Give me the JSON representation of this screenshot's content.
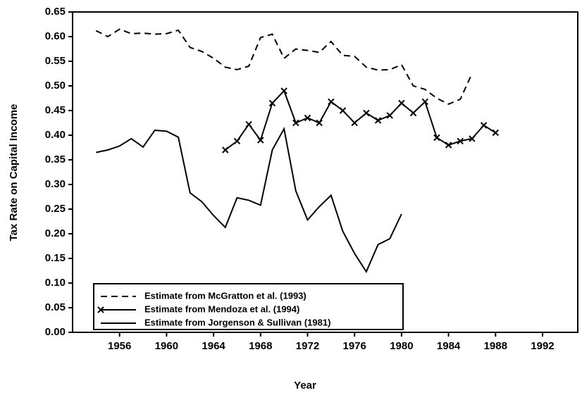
{
  "chart_data": {
    "type": "line",
    "xlabel": "Year",
    "ylabel": "Tax Rate on Capital Income",
    "xlim": [
      1952,
      1995
    ],
    "xticks": [
      1956,
      1960,
      1964,
      1968,
      1972,
      1976,
      1980,
      1984,
      1988,
      1992
    ],
    "ylim": [
      0,
      0.65
    ],
    "yticks": [
      {
        "value": 0,
        "label": "0.00"
      },
      {
        "value": 0.05,
        "label": "0.05"
      },
      {
        "value": 0.1,
        "label": "0.10"
      },
      {
        "value": 0.15,
        "label": "0.15"
      },
      {
        "value": 0.2,
        "label": "0.20"
      },
      {
        "value": 0.25,
        "label": "0.25"
      },
      {
        "value": 0.3,
        "label": "0.30"
      },
      {
        "value": 0.35,
        "label": "0.35"
      },
      {
        "value": 0.4,
        "label": "0.40"
      },
      {
        "value": 0.45,
        "label": "0.45"
      },
      {
        "value": 0.5,
        "label": "0.50"
      },
      {
        "value": 0.55,
        "label": "0.55"
      },
      {
        "value": 0.6,
        "label": "0.60"
      },
      {
        "value": 0.65,
        "label": "0.65"
      }
    ],
    "legend": "lower left",
    "series": [
      {
        "name": "Estimate from McGratton et al. (1993)",
        "color": "#000000",
        "dash": true,
        "x": [
          1954,
          1955,
          1956,
          1957,
          1958,
          1959,
          1960,
          1961,
          1962,
          1963,
          1964,
          1965,
          1966,
          1967,
          1968,
          1969,
          1970,
          1971,
          1972,
          1973,
          1974,
          1975,
          1976,
          1977,
          1978,
          1979,
          1980,
          1981,
          1982,
          1983,
          1984,
          1985,
          1986
        ],
        "values": [
          0.612,
          0.6,
          0.615,
          0.606,
          0.607,
          0.605,
          0.606,
          0.613,
          0.578,
          0.57,
          0.556,
          0.538,
          0.533,
          0.54,
          0.598,
          0.605,
          0.556,
          0.575,
          0.572,
          0.568,
          0.59,
          0.562,
          0.56,
          0.538,
          0.532,
          0.533,
          0.543,
          0.5,
          0.493,
          0.475,
          0.463,
          0.473,
          0.525
        ]
      },
      {
        "name": "Estimate from Mendoza et al. (1994)",
        "color": "#000000",
        "marker": "x",
        "x": [
          1965,
          1966,
          1967,
          1968,
          1969,
          1970,
          1971,
          1972,
          1973,
          1974,
          1975,
          1976,
          1977,
          1978,
          1979,
          1980,
          1981,
          1982,
          1983,
          1984,
          1985,
          1986,
          1987,
          1988
        ],
        "values": [
          0.37,
          0.388,
          0.422,
          0.39,
          0.465,
          0.49,
          0.425,
          0.435,
          0.425,
          0.468,
          0.45,
          0.425,
          0.445,
          0.43,
          0.44,
          0.465,
          0.445,
          0.468,
          0.395,
          0.38,
          0.388,
          0.393,
          0.42,
          0.405
        ]
      },
      {
        "name": "Estimate from Jorgenson & Sullivan (1981)",
        "color": "#000000",
        "x": [
          1954,
          1955,
          1956,
          1957,
          1958,
          1959,
          1960,
          1961,
          1962,
          1963,
          1964,
          1965,
          1966,
          1967,
          1968,
          1969,
          1970,
          1971,
          1972,
          1973,
          1974,
          1975,
          1976,
          1977,
          1978,
          1979,
          1980
        ],
        "values": [
          0.365,
          0.37,
          0.378,
          0.393,
          0.376,
          0.41,
          0.408,
          0.396,
          0.283,
          0.265,
          0.237,
          0.213,
          0.273,
          0.268,
          0.258,
          0.37,
          0.413,
          0.287,
          0.228,
          0.255,
          0.278,
          0.205,
          0.16,
          0.123,
          0.178,
          0.19,
          0.24
        ]
      }
    ]
  }
}
